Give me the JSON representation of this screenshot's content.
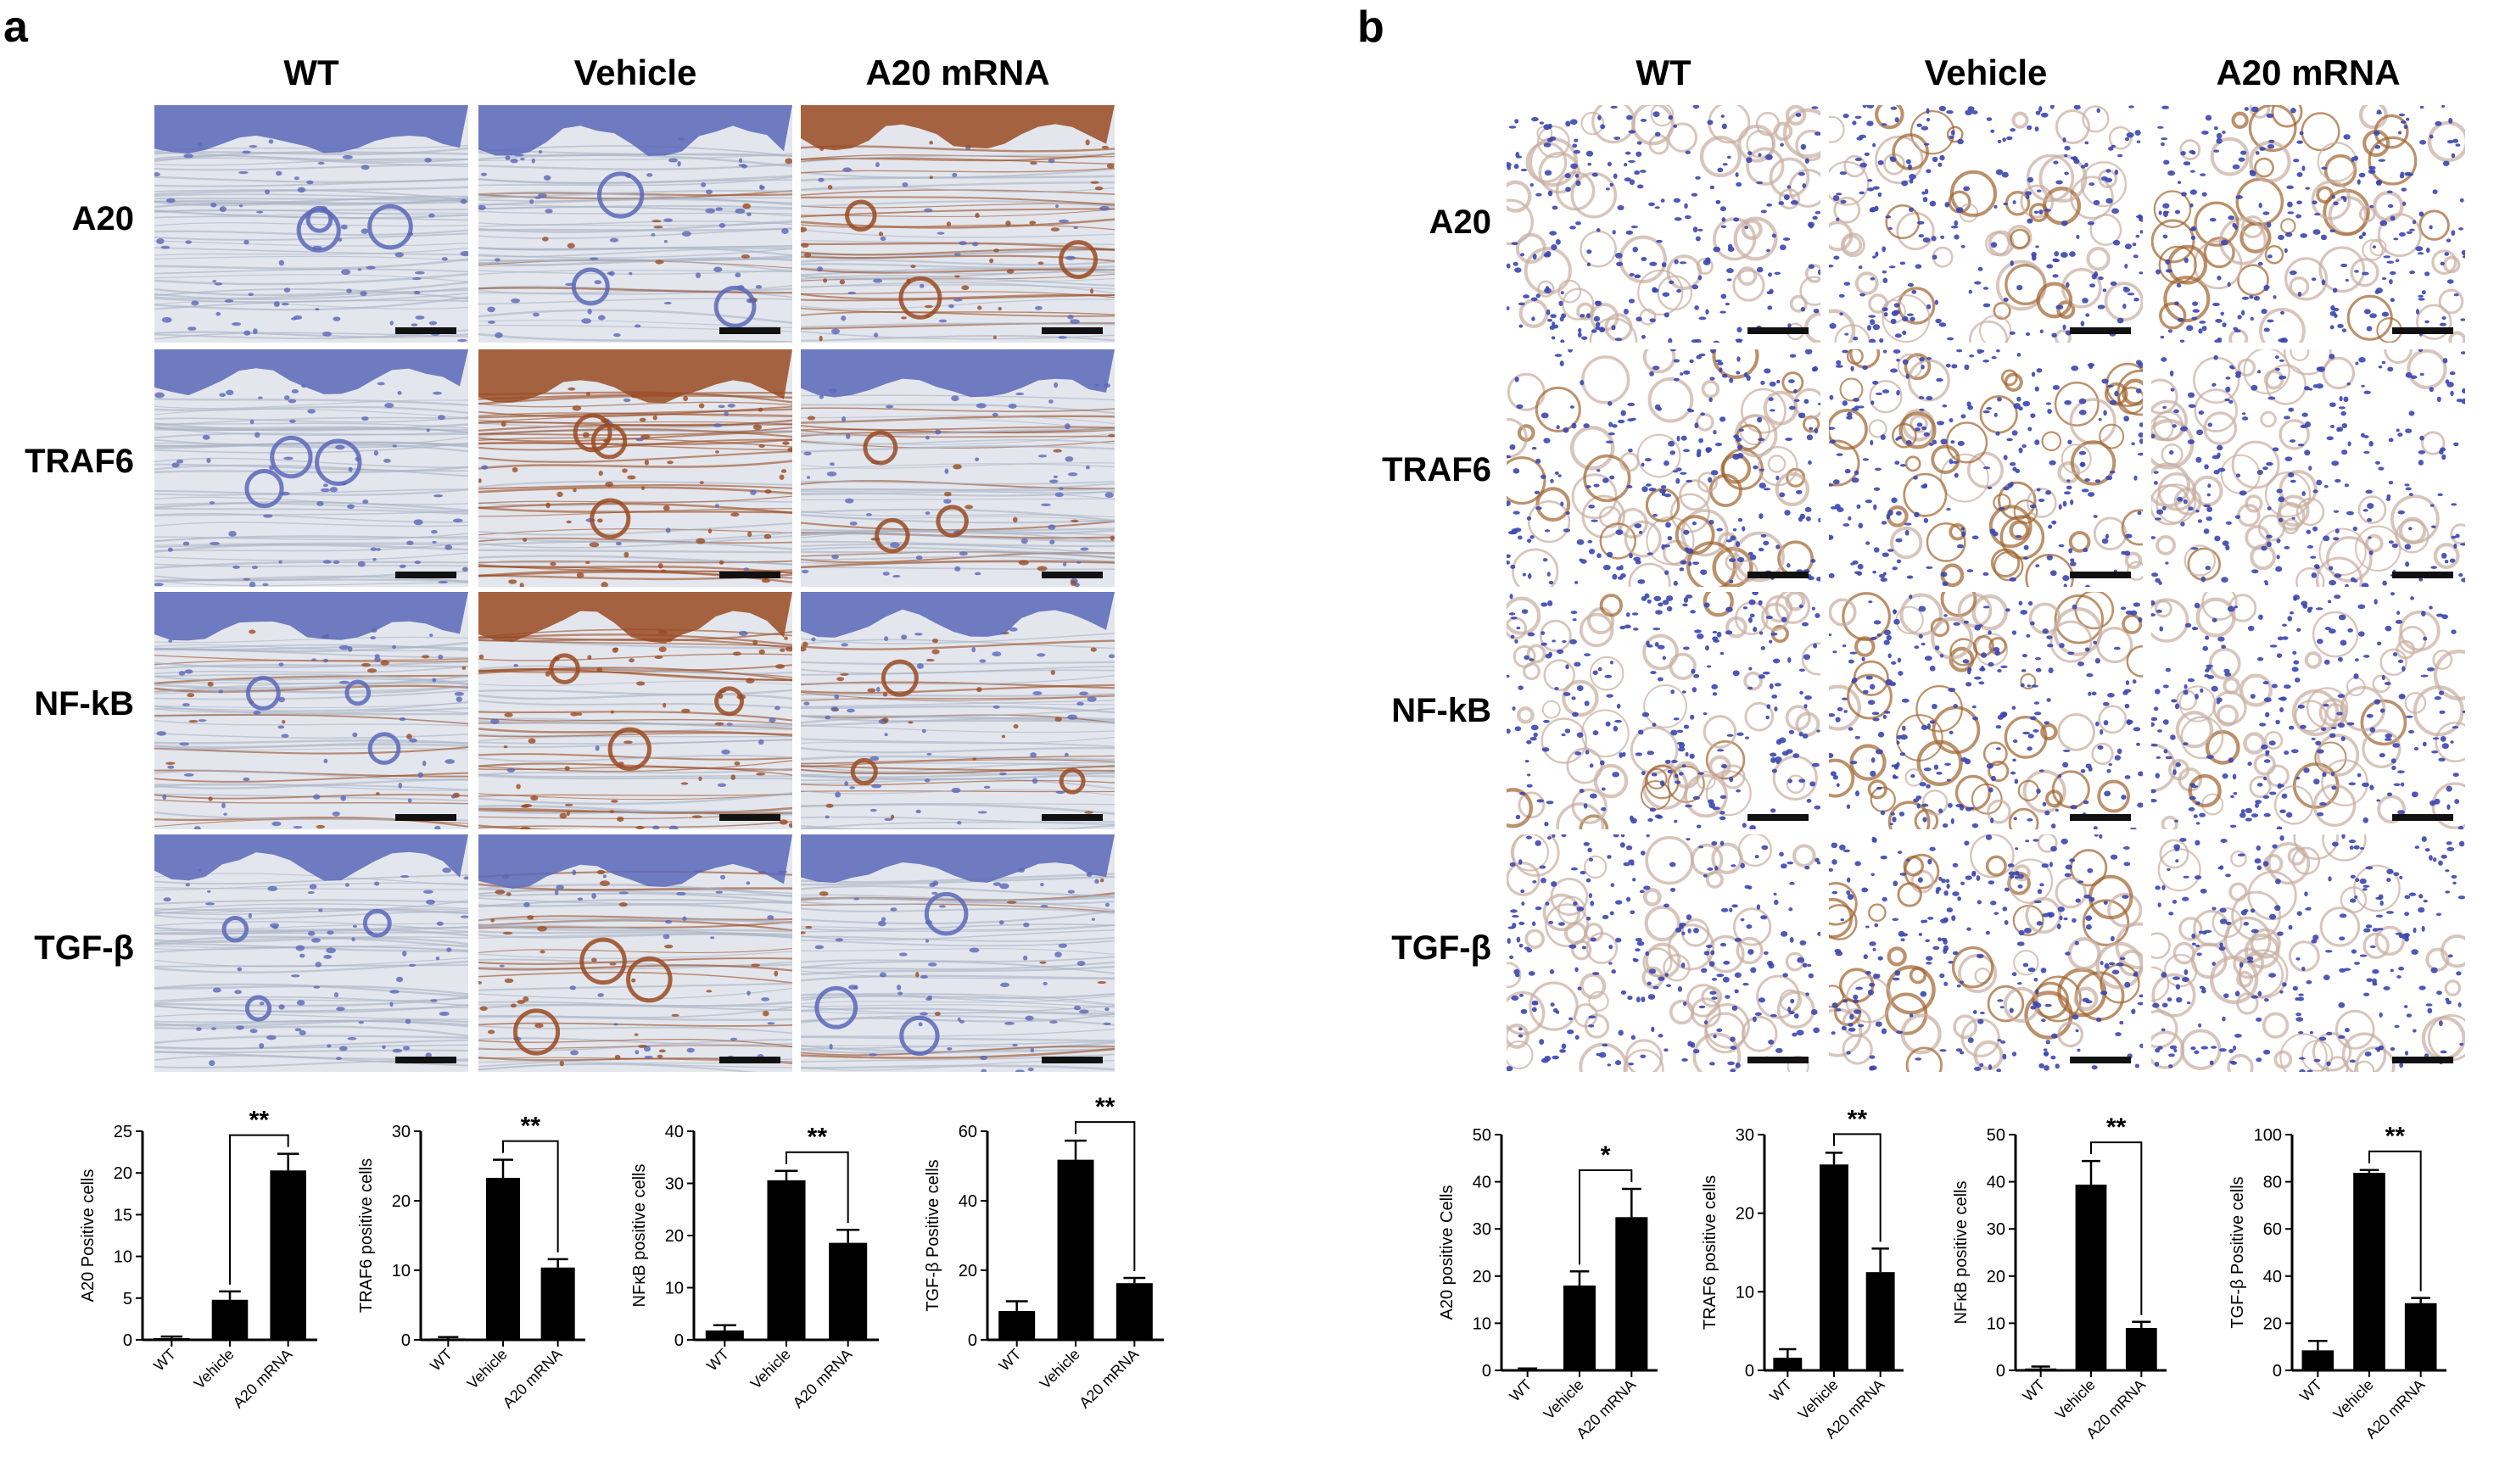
{
  "panels": [
    {
      "letter": "a",
      "columns": [
        "WT",
        "Vehicle",
        "A20 mRNA"
      ],
      "rows": [
        "A20",
        "TRAF6",
        "NF-kB",
        "TGF-β"
      ],
      "tissue": "skin",
      "stain_levels": [
        [
          0.05,
          0.15,
          0.55
        ],
        [
          0.0,
          0.85,
          0.35
        ],
        [
          0.3,
          0.85,
          0.35
        ],
        [
          0.0,
          0.45,
          0.1
        ]
      ],
      "colors": {
        "hematoxylin": "#5a67b8",
        "dab": "#9a4a22",
        "background": "#e3e6ec"
      }
    },
    {
      "letter": "b",
      "columns": [
        "WT",
        "Vehicle",
        "A20 mRNA"
      ],
      "rows": [
        "A20",
        "TRAF6",
        "NF-kB",
        "TGF-β"
      ],
      "tissue": "lung",
      "stain_levels": [
        [
          0.0,
          0.25,
          0.45
        ],
        [
          0.35,
          0.75,
          0.05
        ],
        [
          0.2,
          0.75,
          0.05
        ],
        [
          0.0,
          0.55,
          0.0
        ]
      ],
      "colors": {
        "hematoxylin": "#3b46b0",
        "dab": "#a0622c",
        "background": "#ffffff"
      }
    }
  ],
  "chart_data": [
    {
      "panel": "a",
      "type": "bar",
      "categories": [
        "WT",
        "Vehicle",
        "A20 mRNA"
      ],
      "values": [
        0.2,
        4.8,
        20.3
      ],
      "errors": [
        0.2,
        1.0,
        2.0
      ],
      "ylabel": "A20 Positive cells",
      "ylim": [
        0,
        25
      ],
      "yticks": [
        "0",
        "5",
        "10",
        "15",
        "20",
        "25"
      ],
      "significance": {
        "from": 1,
        "to": 2,
        "label": "**"
      }
    },
    {
      "panel": "a",
      "type": "bar",
      "categories": [
        "WT",
        "Vehicle",
        "A20 mRNA"
      ],
      "values": [
        0.2,
        23.3,
        10.4
      ],
      "errors": [
        0.2,
        2.6,
        1.2
      ],
      "ylabel": "TRAF6 positive cells",
      "ylim": [
        0,
        30
      ],
      "yticks": [
        "0",
        "10",
        "20",
        "30"
      ],
      "significance": {
        "from": 1,
        "to": 2,
        "label": "**"
      }
    },
    {
      "panel": "a",
      "type": "bar",
      "categories": [
        "WT",
        "Vehicle",
        "A20 mRNA"
      ],
      "values": [
        1.8,
        30.6,
        18.6
      ],
      "errors": [
        1.0,
        1.8,
        2.5
      ],
      "ylabel": "NFκB positive cells",
      "ylim": [
        0,
        40
      ],
      "yticks": [
        "0",
        "10",
        "20",
        "30",
        "40"
      ],
      "significance": {
        "from": 1,
        "to": 2,
        "label": "**"
      }
    },
    {
      "panel": "a",
      "type": "bar",
      "categories": [
        "WT",
        "Vehicle",
        "A20 mRNA"
      ],
      "values": [
        8.3,
        51.8,
        16.3
      ],
      "errors": [
        2.8,
        5.5,
        1.5
      ],
      "ylabel": "TGF-β Positive cells",
      "ylim": [
        0,
        60
      ],
      "yticks": [
        "0",
        "20",
        "40",
        "60"
      ],
      "significance": {
        "from": 1,
        "to": 2,
        "label": "**"
      }
    },
    {
      "panel": "b",
      "type": "bar",
      "categories": [
        "WT",
        "Vehicle",
        "A20 mRNA"
      ],
      "values": [
        0.2,
        18.0,
        32.5
      ],
      "errors": [
        0.2,
        3.0,
        6.0
      ],
      "ylabel": "A20 positive Cells",
      "ylim": [
        0,
        50
      ],
      "yticks": [
        "0",
        "10",
        "20",
        "30",
        "40",
        "50"
      ],
      "significance": {
        "from": 1,
        "to": 2,
        "label": "*"
      }
    },
    {
      "panel": "b",
      "type": "bar",
      "categories": [
        "WT",
        "Vehicle",
        "A20 mRNA"
      ],
      "values": [
        1.6,
        26.2,
        12.5
      ],
      "errors": [
        1.1,
        1.5,
        3.0
      ],
      "ylabel": "TRAF6 positive cells",
      "ylim": [
        0,
        30
      ],
      "yticks": [
        "0",
        "10",
        "20",
        "30"
      ],
      "significance": {
        "from": 1,
        "to": 2,
        "label": "**"
      }
    },
    {
      "panel": "b",
      "type": "bar",
      "categories": [
        "WT",
        "Vehicle",
        "A20 mRNA"
      ],
      "values": [
        0.4,
        39.4,
        9.0
      ],
      "errors": [
        0.4,
        5.0,
        1.3
      ],
      "ylabel": "NFκB positive cells",
      "ylim": [
        0,
        50
      ],
      "yticks": [
        "0",
        "10",
        "20",
        "30",
        "40",
        "50"
      ],
      "significance": {
        "from": 1,
        "to": 2,
        "label": "**"
      }
    },
    {
      "panel": "b",
      "type": "bar",
      "categories": [
        "WT",
        "Vehicle",
        "A20 mRNA"
      ],
      "values": [
        8.5,
        83.8,
        28.5
      ],
      "errors": [
        4.0,
        1.2,
        2.2
      ],
      "ylabel": "TGF-β Positive cells",
      "ylim": [
        0,
        100
      ],
      "yticks": [
        "0",
        "20",
        "40",
        "60",
        "80",
        "100"
      ],
      "significance": {
        "from": 1,
        "to": 2,
        "label": "**"
      }
    }
  ]
}
